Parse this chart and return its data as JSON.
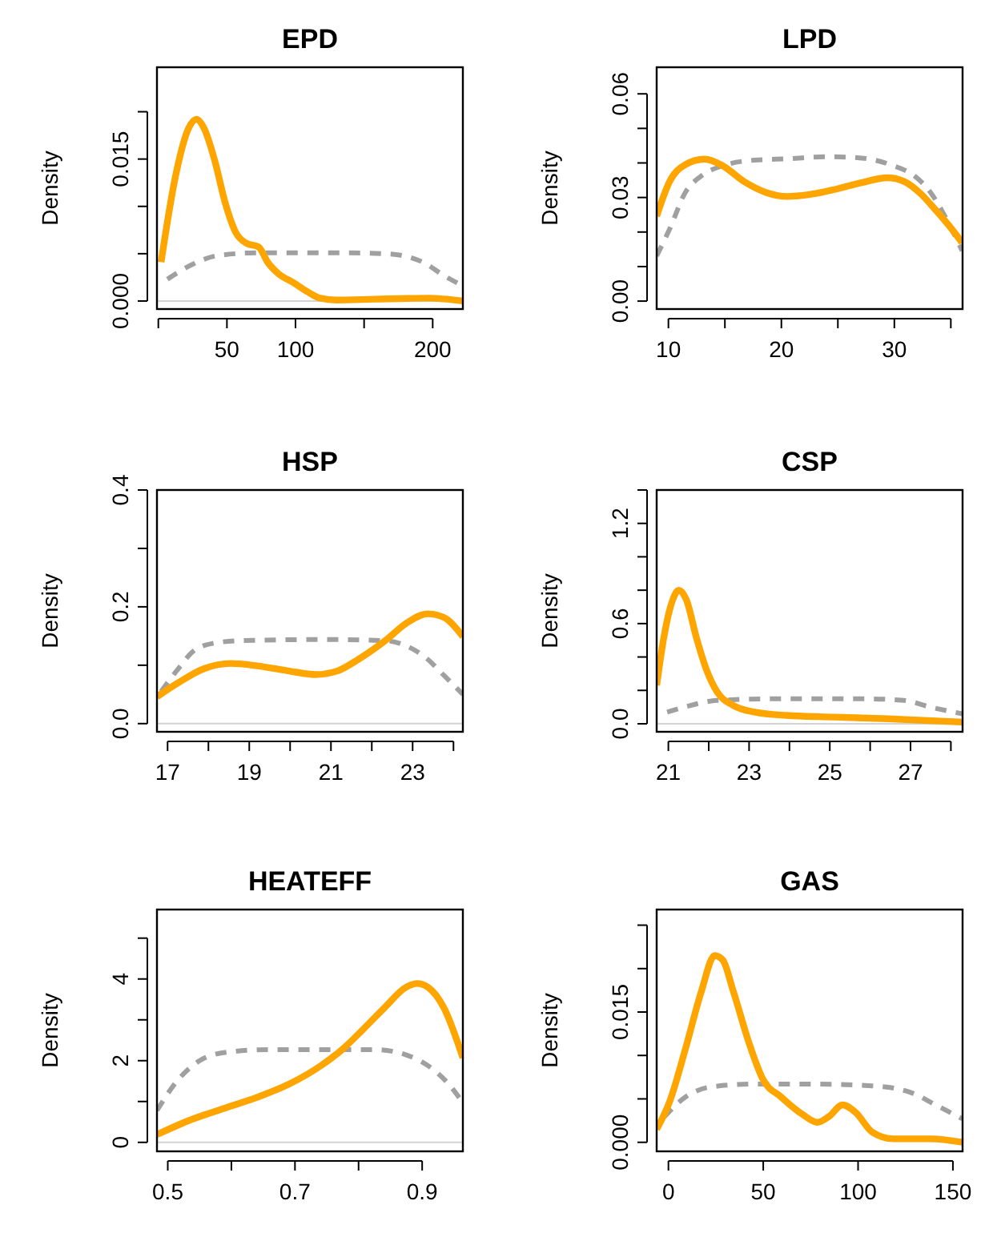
{
  "chart_data": [
    {
      "type": "line",
      "title": "EPD",
      "ylabel": "Density",
      "xlim": [
        -1,
        222
      ],
      "ylim": [
        -0.00085,
        0.0247
      ],
      "xticks": [
        {
          "value": 0,
          "label": null
        },
        50,
        100,
        {
          "value": 150,
          "label": null
        },
        200
      ],
      "yticks": [
        {
          "value": 0,
          "label": "0.000"
        },
        {
          "value": 0.005,
          "label": null
        },
        {
          "value": 0.01,
          "label": null
        },
        {
          "value": 0.015,
          "label": "0.015"
        },
        {
          "value": 0.02,
          "label": null
        }
      ],
      "ref_lines": [
        {
          "axis": "y",
          "value": 0,
          "color": "#d3d3d3"
        }
      ],
      "series": [
        {
          "color": "#ffa500",
          "line_style": "solid",
          "x": [
            2,
            12.4,
            21.9,
            27.8,
            33.5,
            41.2,
            48.9,
            56.6,
            64.3,
            73.2,
            79.7,
            87.4,
            98.9,
            108.5,
            118,
            130,
            158,
            197,
            222
          ],
          "values": [
            0.0041,
            0.0131,
            0.0182,
            0.0192,
            0.0182,
            0.0148,
            0.0103,
            0.0072,
            0.0061,
            0.0057,
            0.0041,
            0.0029,
            0.0019,
            0.001,
            0.0003,
            0.0001,
            0.0002,
            0.0003,
            0
          ]
        },
        {
          "color": "#a0a0a0",
          "line_style": "dashed",
          "x": [
            6.6,
            23.9,
            43.2,
            74,
            120,
            166,
            193,
            208,
            222
          ],
          "values": [
            0.0023,
            0.0038,
            0.0048,
            0.0051,
            0.0051,
            0.005,
            0.0041,
            0.0027,
            0.0016
          ]
        }
      ]
    },
    {
      "type": "line",
      "title": "LPD",
      "ylabel": "Density",
      "xlim": [
        8.96,
        36.04
      ],
      "ylim": [
        -0.0023,
        0.0677
      ],
      "xticks": [
        10,
        {
          "value": 15,
          "label": null
        },
        20,
        {
          "value": 25,
          "label": null
        },
        30,
        {
          "value": 35,
          "label": null
        }
      ],
      "yticks": [
        {
          "value": 0,
          "label": "0.00"
        },
        {
          "value": 0.01,
          "label": null
        },
        {
          "value": 0.02,
          "label": null
        },
        {
          "value": 0.03,
          "label": "0.03"
        },
        {
          "value": 0.04,
          "label": null
        },
        {
          "value": 0.05,
          "label": null
        },
        {
          "value": 0.06,
          "label": "0.06"
        }
      ],
      "series": [
        {
          "color": "#ffa500",
          "line_style": "solid",
          "x": [
            8.96,
            10.1,
            11.5,
            13.2,
            14.8,
            16.7,
            18.6,
            20.5,
            22.4,
            24.7,
            27.1,
            29.4,
            30.9,
            32.3,
            33.7,
            35.1,
            36
          ],
          "values": [
            0.0246,
            0.0346,
            0.0395,
            0.0411,
            0.0392,
            0.0346,
            0.0315,
            0.0303,
            0.0308,
            0.0323,
            0.0343,
            0.0357,
            0.0346,
            0.0312,
            0.0262,
            0.0208,
            0.0169
          ]
        },
        {
          "color": "#a0a0a0",
          "line_style": "dashed",
          "x": [
            8.96,
            10.1,
            11.5,
            12.9,
            14.8,
            17.6,
            20.5,
            24.2,
            27.1,
            29.9,
            31.8,
            33.2,
            34.6,
            36
          ],
          "values": [
            0.0131,
            0.0208,
            0.0315,
            0.0362,
            0.0392,
            0.0408,
            0.0412,
            0.0418,
            0.0414,
            0.0392,
            0.0362,
            0.0315,
            0.0238,
            0.0146
          ]
        }
      ]
    },
    {
      "type": "line",
      "title": "HSP",
      "ylabel": "Density",
      "xlim": [
        16.74,
        24.23
      ],
      "ylim": [
        -0.014,
        0.4
      ],
      "xticks": [
        17,
        {
          "value": 18,
          "label": null
        },
        19,
        {
          "value": 20,
          "label": null
        },
        21,
        {
          "value": 22,
          "label": null
        },
        23,
        {
          "value": 24,
          "label": null
        }
      ],
      "yticks": [
        {
          "value": 0,
          "label": "0.0"
        },
        {
          "value": 0.1,
          "label": null
        },
        {
          "value": 0.2,
          "label": "0.2"
        },
        {
          "value": 0.3,
          "label": null
        },
        {
          "value": 0.4,
          "label": "0.4"
        }
      ],
      "ref_lines": [
        {
          "axis": "y",
          "value": 0,
          "color": "#d3d3d3"
        }
      ],
      "series": [
        {
          "color": "#ffa500",
          "line_style": "solid",
          "x": [
            16.74,
            17.24,
            17.89,
            18.54,
            19.19,
            19.98,
            20.63,
            21.15,
            21.67,
            22.33,
            22.85,
            23.37,
            23.76,
            24.23
          ],
          "values": [
            0.046,
            0.069,
            0.094,
            0.103,
            0.099,
            0.09,
            0.084,
            0.09,
            0.11,
            0.142,
            0.172,
            0.188,
            0.182,
            0.149
          ]
        },
        {
          "color": "#a0a0a0",
          "line_style": "dashed",
          "x": [
            16.84,
            17.24,
            17.63,
            18.15,
            18.8,
            20.76,
            22.33,
            22.85,
            23.37,
            23.76,
            24.23
          ],
          "values": [
            0.055,
            0.092,
            0.124,
            0.138,
            0.142,
            0.144,
            0.142,
            0.133,
            0.11,
            0.083,
            0.05
          ]
        }
      ]
    },
    {
      "type": "line",
      "title": "CSP",
      "ylabel": "Density",
      "xlim": [
        20.71,
        28.29
      ],
      "ylim": [
        -0.048,
        1.4
      ],
      "xticks": [
        21,
        {
          "value": 22,
          "label": null
        },
        23,
        {
          "value": 24,
          "label": null
        },
        25,
        {
          "value": 26,
          "label": null
        },
        27,
        {
          "value": 28,
          "label": null
        }
      ],
      "yticks": [
        {
          "value": 0,
          "label": "0.0"
        },
        {
          "value": 0.2,
          "label": null
        },
        {
          "value": 0.4,
          "label": null
        },
        {
          "value": 0.6,
          "label": "0.6"
        },
        {
          "value": 0.8,
          "label": null
        },
        {
          "value": 1.0,
          "label": null
        },
        {
          "value": 1.2,
          "label": "1.2"
        },
        {
          "value": 1.4,
          "label": null
        }
      ],
      "ref_lines": [
        {
          "axis": "y",
          "value": 0,
          "color": "#d3d3d3"
        }
      ],
      "series": [
        {
          "color": "#ffa500",
          "line_style": "solid",
          "x": [
            20.71,
            20.89,
            21.09,
            21.26,
            21.45,
            21.69,
            21.95,
            22.21,
            22.61,
            23.14,
            23.93,
            25.12,
            26.44,
            28.28
          ],
          "values": [
            0.23,
            0.52,
            0.73,
            0.8,
            0.74,
            0.52,
            0.32,
            0.19,
            0.11,
            0.07,
            0.05,
            0.04,
            0.03,
            0.01
          ]
        },
        {
          "color": "#a0a0a0",
          "line_style": "dashed",
          "x": [
            20.97,
            21.55,
            22.21,
            23.8,
            25.78,
            26.83,
            27.49,
            28.28
          ],
          "values": [
            0.07,
            0.11,
            0.14,
            0.15,
            0.15,
            0.14,
            0.1,
            0.06
          ]
        }
      ]
    },
    {
      "type": "line",
      "title": "HEATEFF",
      "ylabel": "Density",
      "xlim": [
        0.483,
        0.964
      ],
      "ylim": [
        -0.22,
        5.7
      ],
      "xticks": [
        0.5,
        {
          "value": 0.6,
          "label": null
        },
        0.7,
        {
          "value": 0.8,
          "label": null
        },
        0.9
      ],
      "yticks": [
        0,
        {
          "value": 1,
          "label": null
        },
        2,
        {
          "value": 3,
          "label": null
        },
        4,
        {
          "value": 5,
          "label": null
        }
      ],
      "ref_lines": [
        {
          "axis": "y",
          "value": 0,
          "color": "#d3d3d3"
        }
      ],
      "series": [
        {
          "color": "#ffa500",
          "line_style": "solid",
          "x": [
            0.483,
            0.531,
            0.59,
            0.64,
            0.69,
            0.741,
            0.774,
            0.808,
            0.841,
            0.875,
            0.892,
            0.909,
            0.934,
            0.964
          ],
          "values": [
            0.19,
            0.52,
            0.84,
            1.1,
            1.42,
            1.88,
            2.27,
            2.78,
            3.3,
            3.8,
            3.89,
            3.8,
            3.3,
            2.07
          ]
        },
        {
          "color": "#a0a0a0",
          "line_style": "dashed",
          "x": [
            0.483,
            0.514,
            0.548,
            0.59,
            0.657,
            0.741,
            0.825,
            0.875,
            0.909,
            0.942,
            0.964
          ],
          "values": [
            0.78,
            1.49,
            1.98,
            2.2,
            2.27,
            2.27,
            2.27,
            2.14,
            1.88,
            1.42,
            0.97
          ]
        }
      ]
    },
    {
      "type": "line",
      "title": "GAS",
      "ylabel": "Density",
      "xlim": [
        -6.2,
        155.1
      ],
      "ylim": [
        -0.00104,
        0.0268
      ],
      "xticks": [
        0,
        50,
        100,
        150
      ],
      "yticks": [
        {
          "value": 0,
          "label": "0.000"
        },
        {
          "value": 0.005,
          "label": null
        },
        {
          "value": 0.01,
          "label": null
        },
        {
          "value": 0.015,
          "label": "0.015"
        },
        {
          "value": 0.02,
          "label": null
        },
        {
          "value": 0.025,
          "label": null
        }
      ],
      "series": [
        {
          "color": "#ffa500",
          "line_style": "solid",
          "x": [
            -6.2,
            0.5,
            8.9,
            17.4,
            24.4,
            28.6,
            34.2,
            42.7,
            49.7,
            59.5,
            70.8,
            78.6,
            84.8,
            91.8,
            98.9,
            107.3,
            118.5,
            138.2,
            155
          ],
          "values": [
            0.0015,
            0.0046,
            0.0107,
            0.0174,
            0.0215,
            0.021,
            0.0174,
            0.0113,
            0.0073,
            0.0052,
            0.0032,
            0.0023,
            0.003,
            0.0043,
            0.0034,
            0.0012,
            0.0004,
            0.0004,
            0
          ]
        },
        {
          "color": "#a0a0a0",
          "line_style": "dashed",
          "x": [
            -2.3,
            8.9,
            23,
            45.5,
            73.6,
            107.3,
            127,
            141,
            155
          ],
          "values": [
            0.0029,
            0.0052,
            0.0064,
            0.0067,
            0.0067,
            0.0065,
            0.0058,
            0.0043,
            0.0027
          ]
        }
      ]
    }
  ]
}
